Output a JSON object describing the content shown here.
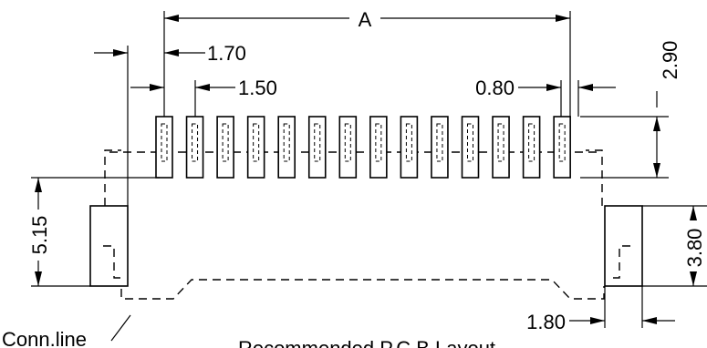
{
  "diagram": {
    "pad_count": 14,
    "dimensions": {
      "overall_width": "A",
      "outer_offset": "1.70",
      "pitch": "1.50",
      "pad_width": "0.80",
      "pad_length": "2.90",
      "vertical_offset": "5.15",
      "anchor_height": "3.80",
      "anchor_width": "1.80"
    },
    "labels": {
      "conn_line": "Conn.line",
      "caption": "Recommended P.C.B Layout"
    }
  }
}
